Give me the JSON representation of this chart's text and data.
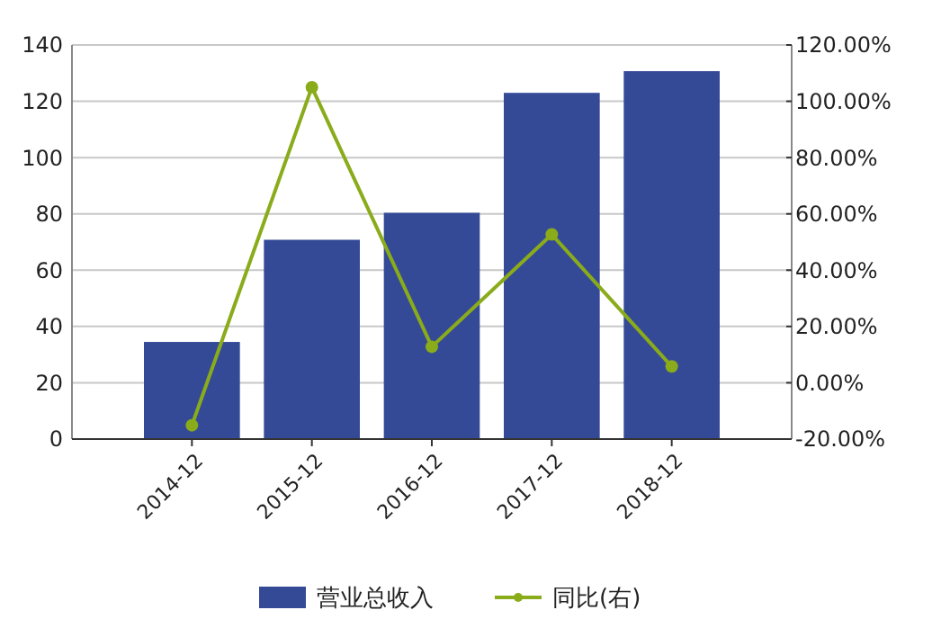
{
  "chart_data": {
    "type": "bar",
    "categories": [
      "2014-12",
      "2015-12",
      "2016-12",
      "2017-12",
      "2018-12"
    ],
    "series": [
      {
        "name": "营业总收入",
        "color": "#354a97",
        "values": [
          34.5,
          70.8,
          80.4,
          123,
          130.7
        ]
      },
      {
        "name": "同比(右)",
        "type": "line",
        "axis": "y2",
        "color": "#8aab1a",
        "marker": "circle",
        "values": [
          -15.1,
          105,
          12.8,
          52.7,
          5.8
        ]
      }
    ],
    "ylim": [
      0,
      140
    ],
    "yticks": [
      0,
      20,
      40,
      60,
      80,
      100,
      120,
      140
    ],
    "y2lim": [
      -20,
      120
    ],
    "y2ticks": [
      {
        "value": -20,
        "label": "-20.00%"
      },
      {
        "value": 0,
        "label": "0.00%"
      },
      {
        "value": 20,
        "label": "20.00%"
      },
      {
        "value": 40,
        "label": "40.00%"
      },
      {
        "value": 60,
        "label": "60.00%"
      },
      {
        "value": 80,
        "label": "80.00%"
      },
      {
        "value": 100,
        "label": "100.00%"
      },
      {
        "value": 120,
        "label": "120.00%"
      }
    ],
    "grid": "y",
    "legend": "bottom"
  }
}
